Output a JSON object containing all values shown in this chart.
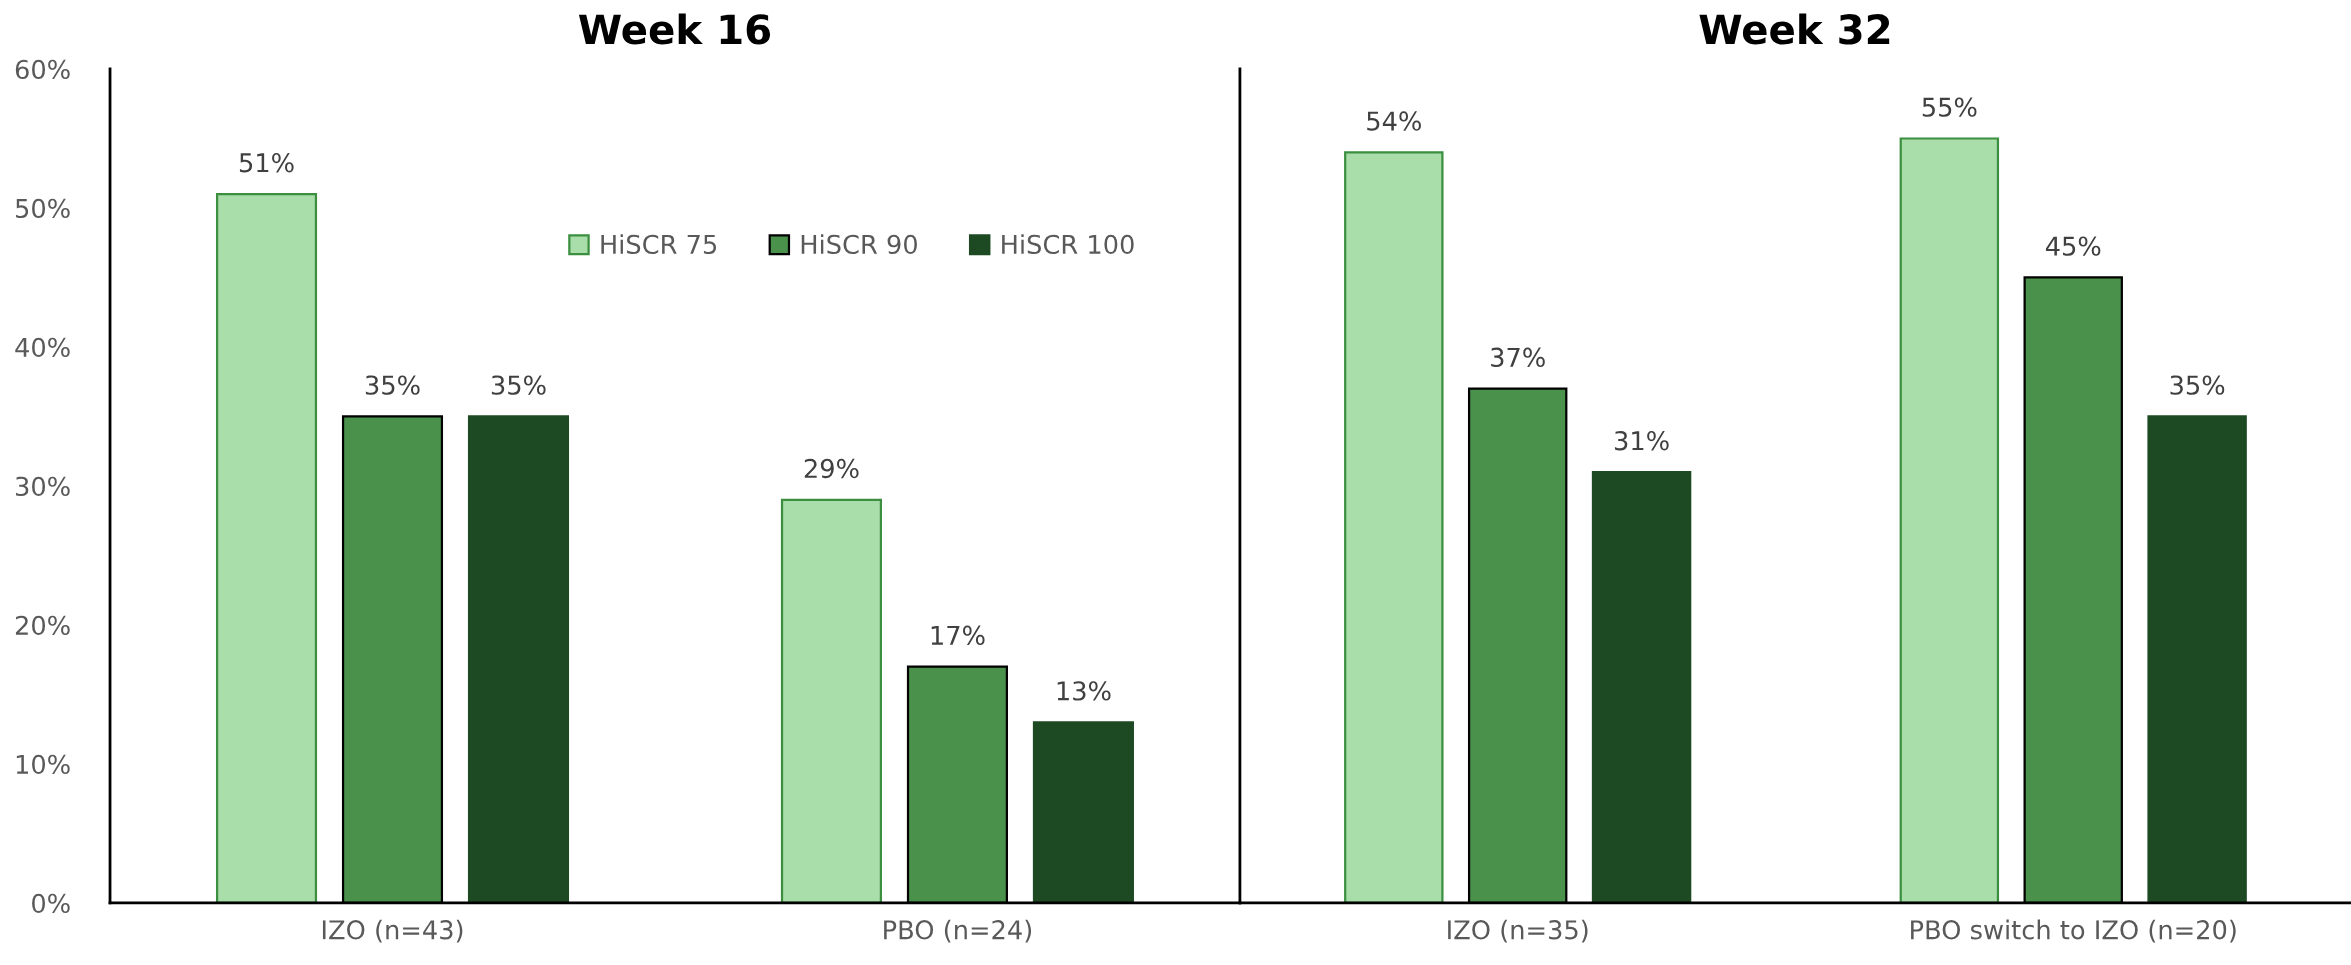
{
  "chart_data": [
    {
      "type": "bar",
      "title": "Week 16",
      "categories": [
        "IZO (n=43)",
        "PBO (n=24)"
      ],
      "series": [
        {
          "name": "HiSCR 75",
          "color": "#a9ddaa",
          "values": [
            51,
            29
          ],
          "value_labels": [
            "51%",
            "29%"
          ]
        },
        {
          "name": "HiSCR 90",
          "color": "#4a914b",
          "values": [
            35,
            17
          ],
          "value_labels": [
            "35%",
            "17%"
          ]
        },
        {
          "name": "HiSCR 100",
          "color": "#1e4a23",
          "values": [
            35,
            13
          ],
          "value_labels": [
            "35%",
            "13%"
          ]
        }
      ],
      "ylim": [
        0,
        60
      ],
      "yticks": [
        {
          "value": 0,
          "label": "0%"
        },
        {
          "value": 10,
          "label": "10%"
        },
        {
          "value": 20,
          "label": "20%"
        },
        {
          "value": 30,
          "label": "30%"
        },
        {
          "value": 40,
          "label": "40%"
        },
        {
          "value": 50,
          "label": "50%"
        },
        {
          "value": 60,
          "label": "60%"
        }
      ],
      "legend": "top right"
    },
    {
      "type": "bar",
      "title": "Week 32",
      "categories": [
        "IZO (n=35)",
        "PBO switch to IZO (n=20)"
      ],
      "series": [
        {
          "color": "#a9ddaa",
          "values": [
            54,
            55
          ],
          "value_labels": [
            "54%",
            "55%"
          ]
        },
        {
          "color": "#4a914b",
          "values": [
            37,
            45
          ],
          "value_labels": [
            "37%",
            "45%"
          ]
        },
        {
          "color": "#1e4a23",
          "values": [
            31,
            35
          ],
          "value_labels": [
            "31%",
            "35%"
          ]
        }
      ],
      "ylim": [
        0,
        60
      ],
      "tick_labels": "x"
    }
  ]
}
